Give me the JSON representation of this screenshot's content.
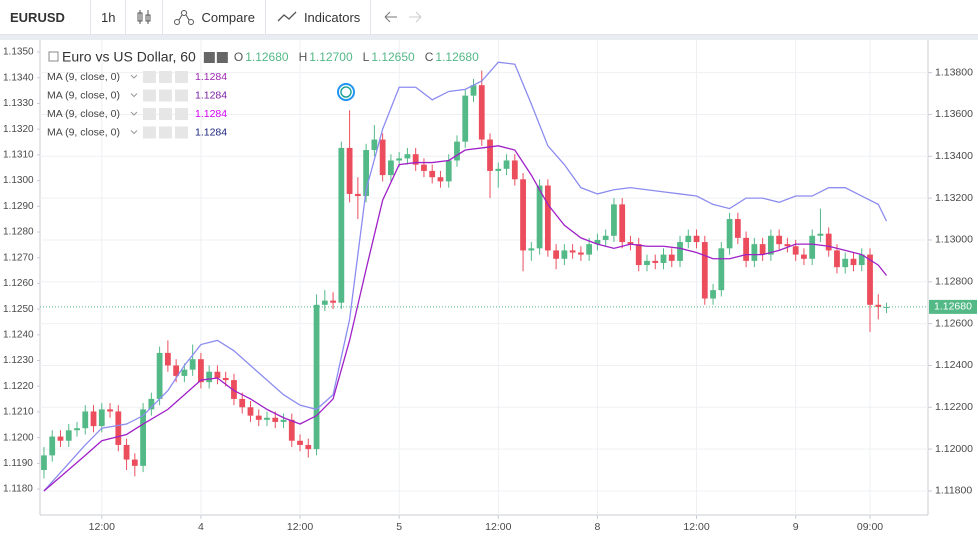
{
  "toolbar": {
    "symbol": "EURUSD",
    "interval": "1h",
    "compare": "Compare",
    "indicators": "Indicators"
  },
  "chart_data": {
    "type": "candlestick",
    "title": "Euro vs US Dollar, 60",
    "legend_ohlc": [
      {
        "key": "O",
        "value": "1.12680"
      },
      {
        "key": "H",
        "value": "1.12700"
      },
      {
        "key": "L",
        "value": "1.12650"
      },
      {
        "key": "C",
        "value": "1.12680"
      }
    ],
    "studies": [
      {
        "name": "MA (9, close, 0)",
        "value": "1.1284",
        "color": "#9c27b0"
      },
      {
        "name": "MA (9, close, 0)",
        "value": "1.1284",
        "color": "#7b1fa2"
      },
      {
        "name": "MA (9, close, 0)",
        "value": "1.1284",
        "color": "#d500f9"
      },
      {
        "name": "MA (9, close, 0)",
        "value": "1.1284",
        "color": "#1a237e"
      }
    ],
    "up_color": "#53b987",
    "down_color": "#eb4d5c",
    "ohlc": [
      [
        1.119,
        1.1201,
        1.1186,
        1.1197
      ],
      [
        1.1197,
        1.1209,
        1.1194,
        1.1206
      ],
      [
        1.1206,
        1.1209,
        1.1201,
        1.1204
      ],
      [
        1.1204,
        1.1212,
        1.1201,
        1.1209
      ],
      [
        1.1209,
        1.1213,
        1.1206,
        1.121
      ],
      [
        1.121,
        1.1221,
        1.1207,
        1.1218
      ],
      [
        1.1218,
        1.1221,
        1.1208,
        1.1211
      ],
      [
        1.1211,
        1.1222,
        1.1208,
        1.1219
      ],
      [
        1.1219,
        1.1222,
        1.1215,
        1.1218
      ],
      [
        1.1218,
        1.1221,
        1.1199,
        1.1202
      ],
      [
        1.1202,
        1.1205,
        1.119,
        1.1195
      ],
      [
        1.1195,
        1.1198,
        1.1187,
        1.1192
      ],
      [
        1.1192,
        1.1222,
        1.1189,
        1.1219
      ],
      [
        1.1219,
        1.1227,
        1.1216,
        1.1224
      ],
      [
        1.1224,
        1.1249,
        1.1221,
        1.1246
      ],
      [
        1.1246,
        1.1252,
        1.1237,
        1.124
      ],
      [
        1.124,
        1.1243,
        1.1232,
        1.1235
      ],
      [
        1.1235,
        1.1241,
        1.1232,
        1.1238
      ],
      [
        1.1238,
        1.125,
        1.1235,
        1.1243
      ],
      [
        1.1243,
        1.1246,
        1.1229,
        1.1232
      ],
      [
        1.1232,
        1.124,
        1.1229,
        1.1237
      ],
      [
        1.1237,
        1.124,
        1.1231,
        1.1234
      ],
      [
        1.1234,
        1.1237,
        1.123,
        1.1233
      ],
      [
        1.1233,
        1.1236,
        1.1221,
        1.1224
      ],
      [
        1.1224,
        1.1227,
        1.1217,
        1.122
      ],
      [
        1.122,
        1.1223,
        1.1213,
        1.1216
      ],
      [
        1.1216,
        1.1219,
        1.1211,
        1.1214
      ],
      [
        1.1214,
        1.1218,
        1.1211,
        1.1215
      ],
      [
        1.1215,
        1.1218,
        1.121,
        1.1213
      ],
      [
        1.1213,
        1.1217,
        1.121,
        1.1214
      ],
      [
        1.1214,
        1.1217,
        1.1201,
        1.1204
      ],
      [
        1.1204,
        1.1207,
        1.1199,
        1.1202
      ],
      [
        1.1202,
        1.1205,
        1.1196,
        1.12
      ],
      [
        1.12,
        1.1274,
        1.1197,
        1.1269
      ],
      [
        1.1269,
        1.1276,
        1.1266,
        1.1271
      ],
      [
        1.1271,
        1.1275,
        1.1267,
        1.127
      ],
      [
        1.127,
        1.1347,
        1.1267,
        1.1344
      ],
      [
        1.1344,
        1.1362,
        1.1318,
        1.1322
      ],
      [
        1.1322,
        1.133,
        1.131,
        1.1321
      ],
      [
        1.1321,
        1.1346,
        1.1318,
        1.1343
      ],
      [
        1.1343,
        1.1355,
        1.134,
        1.1348
      ],
      [
        1.1348,
        1.1351,
        1.1328,
        1.1331
      ],
      [
        1.1331,
        1.1341,
        1.1328,
        1.1338
      ],
      [
        1.1338,
        1.1342,
        1.1335,
        1.1339
      ],
      [
        1.1339,
        1.1344,
        1.1336,
        1.1341
      ],
      [
        1.1341,
        1.1344,
        1.1333,
        1.1336
      ],
      [
        1.1336,
        1.1339,
        1.133,
        1.1333
      ],
      [
        1.1333,
        1.1336,
        1.1327,
        1.133
      ],
      [
        1.133,
        1.1333,
        1.1325,
        1.1328
      ],
      [
        1.1328,
        1.1341,
        1.1325,
        1.1338
      ],
      [
        1.1338,
        1.135,
        1.1335,
        1.1347
      ],
      [
        1.1347,
        1.1372,
        1.1344,
        1.1369
      ],
      [
        1.1369,
        1.1377,
        1.1366,
        1.1374
      ],
      [
        1.1374,
        1.1381,
        1.1345,
        1.1348
      ],
      [
        1.1348,
        1.1351,
        1.132,
        1.1333
      ],
      [
        1.1333,
        1.1337,
        1.1325,
        1.1334
      ],
      [
        1.1334,
        1.1341,
        1.1331,
        1.1338
      ],
      [
        1.1338,
        1.1341,
        1.1326,
        1.1329
      ],
      [
        1.1329,
        1.1332,
        1.1285,
        1.1295
      ],
      [
        1.1295,
        1.1299,
        1.129,
        1.1296
      ],
      [
        1.1296,
        1.1329,
        1.1293,
        1.1326
      ],
      [
        1.1326,
        1.1329,
        1.1292,
        1.1295
      ],
      [
        1.1295,
        1.1298,
        1.1286,
        1.1291
      ],
      [
        1.1291,
        1.1298,
        1.1288,
        1.1295
      ],
      [
        1.1295,
        1.1298,
        1.1291,
        1.1294
      ],
      [
        1.1294,
        1.1297,
        1.129,
        1.1293
      ],
      [
        1.1293,
        1.1301,
        1.129,
        1.1298
      ],
      [
        1.1298,
        1.1303,
        1.1295,
        1.13
      ],
      [
        1.13,
        1.1305,
        1.1297,
        1.1302
      ],
      [
        1.1302,
        1.132,
        1.1299,
        1.1317
      ],
      [
        1.1317,
        1.132,
        1.1296,
        1.1299
      ],
      [
        1.1299,
        1.1302,
        1.1295,
        1.1298
      ],
      [
        1.1298,
        1.1301,
        1.1285,
        1.1288
      ],
      [
        1.1288,
        1.1293,
        1.1285,
        1.129
      ],
      [
        1.129,
        1.1293,
        1.1286,
        1.1289
      ],
      [
        1.1289,
        1.1296,
        1.1286,
        1.1293
      ],
      [
        1.1293,
        1.1296,
        1.1287,
        1.129
      ],
      [
        1.129,
        1.1302,
        1.1287,
        1.1299
      ],
      [
        1.1299,
        1.1305,
        1.1296,
        1.1302
      ],
      [
        1.1302,
        1.1305,
        1.1296,
        1.1299
      ],
      [
        1.1299,
        1.1302,
        1.1269,
        1.1272
      ],
      [
        1.1272,
        1.1279,
        1.1269,
        1.1276
      ],
      [
        1.1276,
        1.1299,
        1.1273,
        1.1296
      ],
      [
        1.1296,
        1.1313,
        1.1293,
        1.131
      ],
      [
        1.131,
        1.1313,
        1.1298,
        1.1301
      ],
      [
        1.1301,
        1.1304,
        1.1287,
        1.129
      ],
      [
        1.129,
        1.1301,
        1.1287,
        1.1298
      ],
      [
        1.1298,
        1.1301,
        1.129,
        1.1293
      ],
      [
        1.1293,
        1.1305,
        1.129,
        1.1302
      ],
      [
        1.1302,
        1.1305,
        1.1295,
        1.1298
      ],
      [
        1.1298,
        1.1301,
        1.1294,
        1.1297
      ],
      [
        1.1297,
        1.13,
        1.129,
        1.1293
      ],
      [
        1.1293,
        1.1296,
        1.1288,
        1.1291
      ],
      [
        1.1291,
        1.1305,
        1.1288,
        1.1302
      ],
      [
        1.1302,
        1.1315,
        1.1299,
        1.1303
      ],
      [
        1.1303,
        1.1306,
        1.1292,
        1.1295
      ],
      [
        1.1295,
        1.1298,
        1.1284,
        1.1287
      ],
      [
        1.1287,
        1.1294,
        1.1284,
        1.1291
      ],
      [
        1.1291,
        1.1294,
        1.1285,
        1.1288
      ],
      [
        1.1288,
        1.1296,
        1.1285,
        1.1293
      ],
      [
        1.1293,
        1.1296,
        1.1256,
        1.1269
      ],
      [
        1.1269,
        1.1274,
        1.1262,
        1.1268
      ],
      [
        1.1268,
        1.127,
        1.1265,
        1.1268
      ]
    ],
    "ma_lines": [
      {
        "color": "#8c8cf0",
        "x": [
          0,
          5,
          7,
          10,
          12,
          15,
          17,
          19,
          21,
          23,
          25,
          27,
          29,
          31,
          33,
          35,
          37,
          39,
          41,
          43,
          45,
          47,
          49,
          51,
          53,
          55,
          57,
          59,
          61,
          63,
          65,
          67,
          69,
          71,
          73,
          75,
          77,
          79,
          81,
          83,
          85,
          87,
          89,
          91,
          93,
          95,
          97,
          99,
          101,
          102
        ],
        "values": [
          1.118,
          1.1202,
          1.121,
          1.1212,
          1.1216,
          1.1228,
          1.124,
          1.125,
          1.1252,
          1.1247,
          1.124,
          1.1233,
          1.1226,
          1.1221,
          1.1219,
          1.1226,
          1.1262,
          1.1324,
          1.1353,
          1.1373,
          1.1373,
          1.1367,
          1.1371,
          1.1372,
          1.1376,
          1.1385,
          1.1384,
          1.1365,
          1.1345,
          1.1336,
          1.1325,
          1.1322,
          1.1324,
          1.1325,
          1.1324,
          1.1323,
          1.1322,
          1.1321,
          1.1317,
          1.1315,
          1.132,
          1.132,
          1.1318,
          1.1321,
          1.1321,
          1.1325,
          1.1325,
          1.1321,
          1.1317,
          1.1309
        ]
      },
      {
        "color": "#a020c8",
        "x": [
          0,
          5,
          7,
          10,
          12,
          15,
          17,
          19,
          21,
          23,
          25,
          27,
          29,
          31,
          33,
          35,
          37,
          39,
          41,
          43,
          45,
          47,
          49,
          51,
          53,
          55,
          57,
          59,
          61,
          63,
          65,
          67,
          69,
          71,
          73,
          75,
          77,
          79,
          81,
          83,
          85,
          87,
          89,
          91,
          93,
          95,
          97,
          99,
          101,
          102
        ],
        "values": [
          1.118,
          1.1197,
          1.1204,
          1.1207,
          1.1212,
          1.1219,
          1.1226,
          1.1233,
          1.1234,
          1.1228,
          1.1224,
          1.1219,
          1.1215,
          1.1212,
          1.1216,
          1.1224,
          1.1252,
          1.1286,
          1.1319,
          1.1336,
          1.1337,
          1.1337,
          1.1338,
          1.1343,
          1.1344,
          1.1345,
          1.1343,
          1.1331,
          1.1317,
          1.1307,
          1.1301,
          1.1298,
          1.1296,
          1.1298,
          1.1297,
          1.1297,
          1.1296,
          1.1294,
          1.1291,
          1.1291,
          1.1293,
          1.1293,
          1.1295,
          1.1298,
          1.1298,
          1.1297,
          1.1295,
          1.1293,
          1.1288,
          1.1283
        ]
      }
    ],
    "xlim": [
      -0.48,
      107.02
    ],
    "xticks": [
      {
        "value": 7,
        "label": "12:00"
      },
      {
        "value": 19,
        "label": "4"
      },
      {
        "value": 31,
        "label": "12:00"
      },
      {
        "value": 43,
        "label": "5"
      },
      {
        "value": 55,
        "label": "12:00"
      },
      {
        "value": 67,
        "label": "8"
      },
      {
        "value": 79,
        "label": "12:00"
      },
      {
        "value": 91,
        "label": "9"
      },
      {
        "value": 100,
        "label": "09:00"
      }
    ],
    "ylim": [
      1.11685,
      1.13956
    ],
    "yticks": [
      {
        "value": 1.118,
        "label": "1.11800"
      },
      {
        "value": 1.12,
        "label": "1.12000"
      },
      {
        "value": 1.122,
        "label": "1.12200"
      },
      {
        "value": 1.124,
        "label": "1.12400"
      },
      {
        "value": 1.126,
        "label": "1.12600"
      },
      {
        "value": 1.128,
        "label": "1.12800"
      },
      {
        "value": 1.13,
        "label": "1.13000"
      },
      {
        "value": 1.132,
        "label": "1.13200"
      },
      {
        "value": 1.134,
        "label": "1.13400"
      },
      {
        "value": 1.136,
        "label": "1.13600"
      },
      {
        "value": 1.138,
        "label": "1.13800"
      }
    ],
    "y2lim": [
      1.11699,
      1.13547
    ],
    "y2ticks": [
      {
        "value": 1.118,
        "label": "1.1180"
      },
      {
        "value": 1.119,
        "label": "1.1190"
      },
      {
        "value": 1.12,
        "label": "1.1200"
      },
      {
        "value": 1.121,
        "label": "1.1210"
      },
      {
        "value": 1.122,
        "label": "1.1220"
      },
      {
        "value": 1.123,
        "label": "1.1230"
      },
      {
        "value": 1.124,
        "label": "1.1240"
      },
      {
        "value": 1.125,
        "label": "1.1250"
      },
      {
        "value": 1.126,
        "label": "1.1260"
      },
      {
        "value": 1.127,
        "label": "1.1270"
      },
      {
        "value": 1.128,
        "label": "1.1280"
      },
      {
        "value": 1.129,
        "label": "1.1290"
      },
      {
        "value": 1.13,
        "label": "1.1300"
      },
      {
        "value": 1.131,
        "label": "1.1310"
      },
      {
        "value": 1.132,
        "label": "1.1320"
      },
      {
        "value": 1.133,
        "label": "1.1330"
      },
      {
        "value": 1.134,
        "label": "1.1340"
      },
      {
        "value": 1.135,
        "label": "1.1350"
      }
    ],
    "last_price": {
      "value": 1.1268,
      "label": "1.12680"
    },
    "grid": true
  }
}
